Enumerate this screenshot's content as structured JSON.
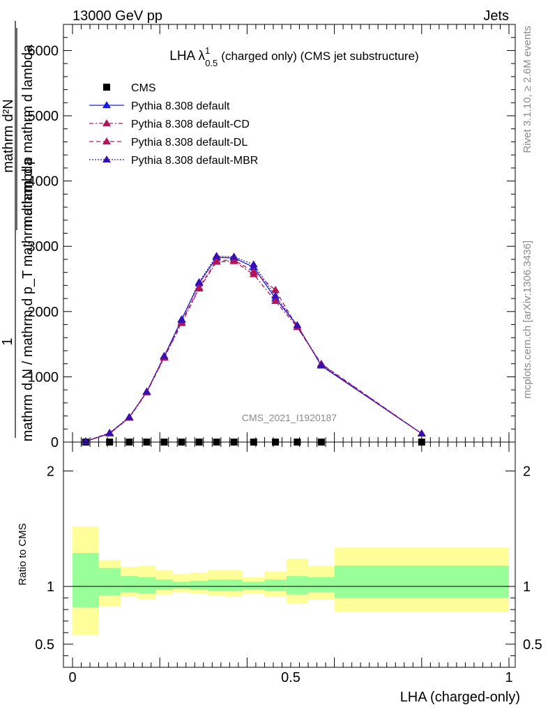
{
  "header": {
    "left": "13000 GeV pp",
    "right": "Jets"
  },
  "side_labels": {
    "rivet": "Rivet 3.1.10, ≥ 2.6M events",
    "mcplots": "mcplots.cern.ch [arXiv:1306.3436]"
  },
  "watermark": "CMS_2021_I1920187",
  "colors": {
    "data": "#000000",
    "default": "#1a1adf",
    "cd": "#b0165a",
    "dl": "#b0165a",
    "mbr": "#3a0fb0",
    "band_inner": "#99ff99",
    "band_outer": "#ffff99"
  },
  "chart_data": [
    {
      "type": "line",
      "title_main": "LHA λ",
      "title_sup": "1",
      "title_sub": "0.5",
      "title_rest": "(charged only) (CMS jet substructure)",
      "ylabel_num": "1",
      "ylabel_den": "mathrm d N / mathrm d p_T mathrm d lambda",
      "ylabel_top": "mathrm d²N",
      "ylabel_top_T": "T",
      "ylabel_top_rest": "mathrm d p  mathrm d lambda",
      "xlim": [
        0,
        1
      ],
      "ylim": [
        0,
        6400
      ],
      "yticks": [
        0,
        1000,
        2000,
        3000,
        4000,
        5000,
        6000
      ],
      "ytick_labels": [
        "0",
        "1000",
        "2000",
        "3000",
        "4000",
        "5000",
        "6000"
      ],
      "legend_position": "top-left",
      "x": [
        0.03,
        0.085,
        0.13,
        0.17,
        0.21,
        0.25,
        0.29,
        0.33,
        0.37,
        0.415,
        0.465,
        0.515,
        0.57,
        0.8
      ],
      "series": [
        {
          "name": "CMS",
          "marker": "square",
          "values": [
            0,
            0,
            0,
            0,
            0,
            0,
            0,
            0,
            0,
            0,
            0,
            0,
            0,
            0
          ]
        },
        {
          "name": "Pythia 8.308 default",
          "marker": "triangle",
          "dash": "",
          "values": [
            10,
            130,
            380,
            770,
            1310,
            1880,
            2430,
            2830,
            2820,
            2680,
            2200,
            1790,
            1170,
            130
          ]
        },
        {
          "name": "Pythia 8.308 default-CD",
          "marker": "triangle",
          "dash": "6,3,2,3",
          "values": [
            10,
            130,
            370,
            760,
            1290,
            1820,
            2350,
            2760,
            2770,
            2570,
            2160,
            1760,
            1190,
            130
          ]
        },
        {
          "name": "Pythia 8.308 default-DL",
          "marker": "triangle",
          "dash": "6,4",
          "values": [
            10,
            140,
            380,
            770,
            1300,
            1840,
            2370,
            2780,
            2790,
            2610,
            2330,
            1760,
            1200,
            130
          ]
        },
        {
          "name": "Pythia 8.308 default-MBR",
          "marker": "triangle",
          "dash": "2,2",
          "values": [
            10,
            140,
            380,
            770,
            1320,
            1870,
            2450,
            2850,
            2840,
            2720,
            2240,
            1790,
            1180,
            130
          ]
        }
      ]
    },
    {
      "type": "area",
      "ylabel": "Ratio to CMS",
      "xlabel": "LHA (charged-only)",
      "xlim": [
        0,
        1
      ],
      "ylim": [
        0.3,
        2.25
      ],
      "yticks": [
        0.5,
        1,
        2
      ],
      "ytick_labels": [
        "0.5",
        "1",
        "2"
      ],
      "xticks": [
        0,
        0.5,
        1
      ],
      "xtick_labels": [
        "0",
        "0.5",
        "1"
      ],
      "reference_line": 1,
      "bins": [
        {
          "x0": 0.0,
          "x1": 0.06,
          "inner": [
            0.82,
            1.29
          ],
          "outer": [
            0.58,
            1.52
          ]
        },
        {
          "x0": 0.06,
          "x1": 0.11,
          "inner": [
            0.92,
            1.16
          ],
          "outer": [
            0.83,
            1.23
          ]
        },
        {
          "x0": 0.11,
          "x1": 0.15,
          "inner": [
            0.95,
            1.09
          ],
          "outer": [
            0.91,
            1.17
          ]
        },
        {
          "x0": 0.15,
          "x1": 0.19,
          "inner": [
            0.94,
            1.08
          ],
          "outer": [
            0.89,
            1.18
          ]
        },
        {
          "x0": 0.19,
          "x1": 0.23,
          "inner": [
            0.97,
            1.06
          ],
          "outer": [
            0.93,
            1.14
          ]
        },
        {
          "x0": 0.23,
          "x1": 0.27,
          "inner": [
            0.98,
            1.04
          ],
          "outer": [
            0.95,
            1.11
          ]
        },
        {
          "x0": 0.27,
          "x1": 0.31,
          "inner": [
            0.97,
            1.05
          ],
          "outer": [
            0.94,
            1.12
          ]
        },
        {
          "x0": 0.31,
          "x1": 0.35,
          "inner": [
            0.96,
            1.06
          ],
          "outer": [
            0.92,
            1.14
          ]
        },
        {
          "x0": 0.35,
          "x1": 0.39,
          "inner": [
            0.96,
            1.06
          ],
          "outer": [
            0.91,
            1.14
          ]
        },
        {
          "x0": 0.39,
          "x1": 0.44,
          "inner": [
            0.97,
            1.04
          ],
          "outer": [
            0.94,
            1.08
          ]
        },
        {
          "x0": 0.44,
          "x1": 0.49,
          "inner": [
            0.96,
            1.06
          ],
          "outer": [
            0.91,
            1.13
          ]
        },
        {
          "x0": 0.49,
          "x1": 0.54,
          "inner": [
            0.93,
            1.09
          ],
          "outer": [
            0.85,
            1.24
          ]
        },
        {
          "x0": 0.54,
          "x1": 0.6,
          "inner": [
            0.95,
            1.08
          ],
          "outer": [
            0.89,
            1.18
          ]
        },
        {
          "x0": 0.6,
          "x1": 1.0,
          "inner": [
            0.9,
            1.18
          ],
          "outer": [
            0.78,
            1.34
          ]
        }
      ]
    }
  ]
}
